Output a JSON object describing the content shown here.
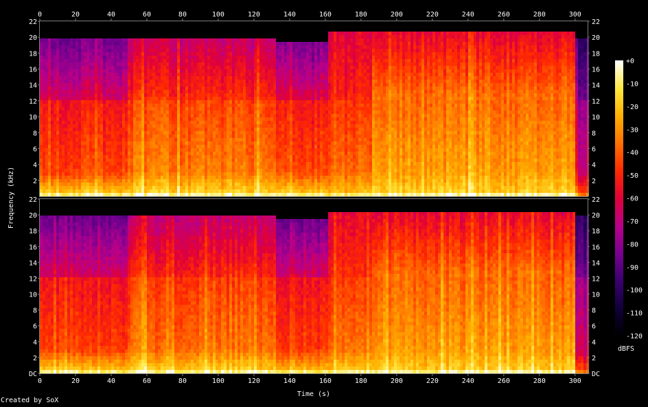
{
  "chart_data": {
    "type": "heatmap",
    "subtype": "spectrogram",
    "xlabel": "Time (s)",
    "ylabel": "Frequency (kHz)",
    "x_ticks": [
      0,
      20,
      40,
      60,
      80,
      100,
      120,
      140,
      160,
      180,
      200,
      220,
      240,
      260,
      280,
      300
    ],
    "y_ticks": [
      "DC",
      "2",
      "4",
      "6",
      "8",
      "10",
      "12",
      "14",
      "16",
      "18",
      "20",
      "22"
    ],
    "top_channel_y_ticks": [
      "2",
      "4",
      "6",
      "8",
      "10",
      "12",
      "14",
      "16",
      "18",
      "20",
      "22"
    ],
    "xlim": [
      0,
      307
    ],
    "ylim_khz": [
      0,
      22
    ],
    "channels": 2,
    "colorbar": {
      "label": "dBFS",
      "ticks": [
        "+0",
        "-10",
        "-20",
        "-30",
        "-40",
        "-50",
        "-60",
        "-70",
        "-80",
        "-90",
        "-100",
        "-110",
        "-120"
      ],
      "range_db": [
        -120,
        0
      ]
    },
    "segments": [
      {
        "start_s": 0,
        "end_s": 50,
        "cutoff_khz": 19.8,
        "low_band_level_db": -20,
        "mid_level_db": -62,
        "high_level_db": -85
      },
      {
        "start_s": 50,
        "end_s": 132,
        "cutoff_khz": 20.0,
        "low_band_level_db": -18,
        "mid_level_db": -48,
        "high_level_db": -68
      },
      {
        "start_s": 132,
        "end_s": 162,
        "cutoff_khz": 19.5,
        "low_band_level_db": -22,
        "mid_level_db": -62,
        "high_level_db": -85
      },
      {
        "start_s": 162,
        "end_s": 186,
        "cutoff_khz": 20.5,
        "low_band_level_db": -22,
        "mid_level_db": -50,
        "high_level_db": -60
      },
      {
        "start_s": 186,
        "end_s": 300,
        "cutoff_khz": 20.5,
        "low_band_level_db": -18,
        "mid_level_db": -35,
        "high_level_db": -58
      },
      {
        "start_s": 300,
        "end_s": 307,
        "cutoff_khz": 20.0,
        "low_band_level_db": -45,
        "mid_level_db": -85,
        "high_level_db": -100
      }
    ]
  },
  "credit": "Created by SoX",
  "colors": {
    "background": "#000000",
    "frame": "#7f7f7f",
    "palette": [
      "#000000",
      "#10003a",
      "#3a0070",
      "#7a0090",
      "#b8008a",
      "#e0003a",
      "#ff2a00",
      "#ff7000",
      "#ffb000",
      "#ffe840",
      "#ffffff"
    ]
  }
}
